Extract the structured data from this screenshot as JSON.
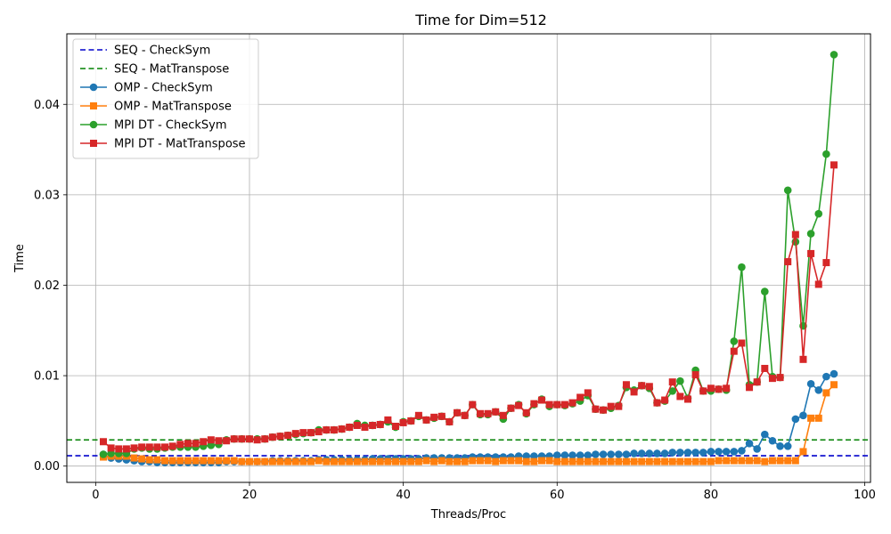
{
  "chart_data": {
    "type": "line",
    "title": "Time for Dim=512",
    "xlabel": "Threads/Proc",
    "ylabel": "Time",
    "xlim": [
      -3.75,
      100.75
    ],
    "ylim": [
      -0.0018,
      0.0478
    ],
    "xticks": [
      0,
      20,
      40,
      60,
      80,
      100
    ],
    "xtick_labels": [
      "0",
      "20",
      "40",
      "60",
      "80",
      "100"
    ],
    "yticks": [
      0,
      0.01,
      0.02,
      0.03,
      0.04
    ],
    "ytick_labels": [
      "0.00",
      "0.01",
      "0.02",
      "0.03",
      "0.04"
    ],
    "grid": true,
    "legend_position": "top-left",
    "reference_lines": [
      {
        "name": "SEQ - CheckSym",
        "y": 0.00115,
        "color": "#0000cc",
        "dash": "dashed"
      },
      {
        "name": "SEQ - MatTranspose",
        "y": 0.0029,
        "color": "#008000",
        "dash": "dashed"
      }
    ],
    "series": [
      {
        "name": "OMP - CheckSym",
        "color": "#1f77b4",
        "marker": "circle",
        "x": [
          1,
          2,
          3,
          4,
          5,
          6,
          7,
          8,
          9,
          10,
          11,
          12,
          13,
          14,
          15,
          16,
          17,
          18,
          19,
          20,
          21,
          22,
          23,
          24,
          25,
          26,
          27,
          28,
          29,
          30,
          31,
          32,
          33,
          34,
          35,
          36,
          37,
          38,
          39,
          40,
          41,
          42,
          43,
          44,
          45,
          46,
          47,
          48,
          49,
          50,
          51,
          52,
          53,
          54,
          55,
          56,
          57,
          58,
          59,
          60,
          61,
          62,
          63,
          64,
          65,
          66,
          67,
          68,
          69,
          70,
          71,
          72,
          73,
          74,
          75,
          76,
          77,
          78,
          79,
          80,
          81,
          82,
          83,
          84,
          85,
          86,
          87,
          88,
          89,
          90,
          91,
          92,
          93,
          94,
          95,
          96
        ],
        "y": [
          0.0013,
          0.0009,
          0.0008,
          0.0007,
          0.0006,
          0.0005,
          0.0005,
          0.0004,
          0.0004,
          0.0004,
          0.0004,
          0.0004,
          0.0004,
          0.0004,
          0.0004,
          0.0004,
          0.0005,
          0.0005,
          0.0005,
          0.0005,
          0.0005,
          0.0005,
          0.0006,
          0.0006,
          0.0006,
          0.0006,
          0.0006,
          0.0006,
          0.0007,
          0.0007,
          0.0007,
          0.0007,
          0.0007,
          0.0007,
          0.0007,
          0.0008,
          0.0008,
          0.0008,
          0.0008,
          0.0008,
          0.0008,
          0.0008,
          0.0009,
          0.0009,
          0.0009,
          0.0009,
          0.0009,
          0.0009,
          0.001,
          0.001,
          0.001,
          0.001,
          0.001,
          0.001,
          0.0011,
          0.0011,
          0.0011,
          0.0011,
          0.0011,
          0.0012,
          0.0012,
          0.0012,
          0.0012,
          0.0012,
          0.0013,
          0.0013,
          0.0013,
          0.0013,
          0.0013,
          0.0014,
          0.0014,
          0.0014,
          0.0014,
          0.0014,
          0.0015,
          0.0015,
          0.0015,
          0.0015,
          0.0015,
          0.0016,
          0.0016,
          0.0016,
          0.0016,
          0.0017,
          0.0025,
          0.0019,
          0.0035,
          0.0028,
          0.0022,
          0.0022,
          0.0052,
          0.0056,
          0.0091,
          0.0084,
          0.0099,
          0.0102
        ]
      },
      {
        "name": "OMP - MatTranspose",
        "color": "#ff7f0e",
        "marker": "square",
        "x": [
          1,
          2,
          3,
          4,
          5,
          6,
          7,
          8,
          9,
          10,
          11,
          12,
          13,
          14,
          15,
          16,
          17,
          18,
          19,
          20,
          21,
          22,
          23,
          24,
          25,
          26,
          27,
          28,
          29,
          30,
          31,
          32,
          33,
          34,
          35,
          36,
          37,
          38,
          39,
          40,
          41,
          42,
          43,
          44,
          45,
          46,
          47,
          48,
          49,
          50,
          51,
          52,
          53,
          54,
          55,
          56,
          57,
          58,
          59,
          60,
          61,
          62,
          63,
          64,
          65,
          66,
          67,
          68,
          69,
          70,
          71,
          72,
          73,
          74,
          75,
          76,
          77,
          78,
          79,
          80,
          81,
          82,
          83,
          84,
          85,
          86,
          87,
          88,
          89,
          90,
          91,
          92,
          93,
          94,
          95,
          96
        ],
        "y": [
          0.001,
          0.0011,
          0.0011,
          0.0011,
          0.0009,
          0.0008,
          0.0007,
          0.0007,
          0.0006,
          0.0006,
          0.0006,
          0.0006,
          0.0006,
          0.0006,
          0.0006,
          0.0006,
          0.0006,
          0.0006,
          0.0005,
          0.0005,
          0.0005,
          0.0005,
          0.0005,
          0.0005,
          0.0005,
          0.0005,
          0.0005,
          0.0005,
          0.0006,
          0.0005,
          0.0005,
          0.0005,
          0.0005,
          0.0005,
          0.0005,
          0.0005,
          0.0005,
          0.0005,
          0.0005,
          0.0005,
          0.0005,
          0.0005,
          0.0006,
          0.0005,
          0.0006,
          0.0005,
          0.0005,
          0.0005,
          0.0006,
          0.0006,
          0.0006,
          0.0005,
          0.0006,
          0.0006,
          0.0006,
          0.0005,
          0.0005,
          0.0006,
          0.0006,
          0.0005,
          0.0005,
          0.0005,
          0.0005,
          0.0005,
          0.0005,
          0.0005,
          0.0005,
          0.0005,
          0.0005,
          0.0005,
          0.0005,
          0.0005,
          0.0005,
          0.0005,
          0.0005,
          0.0005,
          0.0005,
          0.0005,
          0.0005,
          0.0005,
          0.0006,
          0.0006,
          0.0006,
          0.0006,
          0.0006,
          0.0006,
          0.0005,
          0.0006,
          0.0006,
          0.0006,
          0.0006,
          0.0016,
          0.0053,
          0.0053,
          0.0081,
          0.009
        ]
      },
      {
        "name": "MPI DT - CheckSym",
        "color": "#2ca02c",
        "marker": "circle",
        "x": [
          1,
          2,
          3,
          4,
          5,
          6,
          7,
          8,
          9,
          10,
          11,
          12,
          13,
          14,
          15,
          16,
          17,
          18,
          19,
          20,
          21,
          22,
          23,
          24,
          25,
          26,
          27,
          28,
          29,
          30,
          31,
          32,
          33,
          34,
          35,
          36,
          37,
          38,
          39,
          40,
          41,
          42,
          43,
          44,
          45,
          46,
          47,
          48,
          49,
          50,
          51,
          52,
          53,
          54,
          55,
          56,
          57,
          58,
          59,
          60,
          61,
          62,
          63,
          64,
          65,
          66,
          67,
          68,
          69,
          70,
          71,
          72,
          73,
          74,
          75,
          76,
          77,
          78,
          79,
          80,
          81,
          82,
          83,
          84,
          85,
          86,
          87,
          88,
          89,
          90,
          91,
          92,
          93,
          94,
          95,
          96
        ],
        "y": [
          0.0013,
          0.0014,
          0.0014,
          0.0014,
          0.0019,
          0.002,
          0.0019,
          0.0019,
          0.002,
          0.0021,
          0.0021,
          0.0021,
          0.0021,
          0.0022,
          0.0023,
          0.0024,
          0.0029,
          0.003,
          0.003,
          0.003,
          0.003,
          0.003,
          0.0032,
          0.0033,
          0.0034,
          0.0035,
          0.0036,
          0.0037,
          0.004,
          0.004,
          0.004,
          0.0041,
          0.0043,
          0.0047,
          0.0045,
          0.0045,
          0.0046,
          0.0049,
          0.0043,
          0.0049,
          0.005,
          0.0055,
          0.0051,
          0.0053,
          0.0055,
          0.0049,
          0.0059,
          0.0056,
          0.0068,
          0.0057,
          0.0057,
          0.006,
          0.0052,
          0.0064,
          0.0068,
          0.0058,
          0.0068,
          0.0074,
          0.0066,
          0.0068,
          0.0067,
          0.0069,
          0.0072,
          0.0078,
          0.0063,
          0.0062,
          0.0064,
          0.0067,
          0.0087,
          0.0084,
          0.0089,
          0.0086,
          0.007,
          0.0072,
          0.0083,
          0.0094,
          0.0075,
          0.0106,
          0.0083,
          0.0083,
          0.0085,
          0.0084,
          0.0138,
          0.022,
          0.009,
          0.0093,
          0.0193,
          0.0099,
          0.0098,
          0.0305,
          0.0248,
          0.0155,
          0.0257,
          0.0279,
          0.0345,
          0.0455
        ]
      },
      {
        "name": "MPI DT - MatTranspose",
        "color": "#d62728",
        "marker": "square",
        "x": [
          1,
          2,
          3,
          4,
          5,
          6,
          7,
          8,
          9,
          10,
          11,
          12,
          13,
          14,
          15,
          16,
          17,
          18,
          19,
          20,
          21,
          22,
          23,
          24,
          25,
          26,
          27,
          28,
          29,
          30,
          31,
          32,
          33,
          34,
          35,
          36,
          37,
          38,
          39,
          40,
          41,
          42,
          43,
          44,
          45,
          46,
          47,
          48,
          49,
          50,
          51,
          52,
          53,
          54,
          55,
          56,
          57,
          58,
          59,
          60,
          61,
          62,
          63,
          64,
          65,
          66,
          67,
          68,
          69,
          70,
          71,
          72,
          73,
          74,
          75,
          76,
          77,
          78,
          79,
          80,
          81,
          82,
          83,
          84,
          85,
          86,
          87,
          88,
          89,
          90,
          91,
          92,
          93,
          94,
          95,
          96
        ],
        "y": [
          0.0027,
          0.002,
          0.0019,
          0.0019,
          0.002,
          0.0021,
          0.0021,
          0.0021,
          0.0021,
          0.0022,
          0.0024,
          0.0025,
          0.0025,
          0.0027,
          0.0029,
          0.0028,
          0.0028,
          0.003,
          0.003,
          0.003,
          0.0029,
          0.003,
          0.0032,
          0.0033,
          0.0034,
          0.0036,
          0.0037,
          0.0037,
          0.0038,
          0.004,
          0.004,
          0.0041,
          0.0043,
          0.0045,
          0.0043,
          0.0045,
          0.0046,
          0.0051,
          0.0044,
          0.0048,
          0.005,
          0.0056,
          0.0051,
          0.0054,
          0.0055,
          0.0049,
          0.0059,
          0.0056,
          0.0068,
          0.0058,
          0.0058,
          0.006,
          0.0056,
          0.0064,
          0.0067,
          0.0059,
          0.0069,
          0.0073,
          0.0068,
          0.0068,
          0.0068,
          0.007,
          0.0076,
          0.0081,
          0.0063,
          0.0062,
          0.0066,
          0.0066,
          0.009,
          0.0082,
          0.0089,
          0.0088,
          0.007,
          0.0073,
          0.0093,
          0.0077,
          0.0074,
          0.0101,
          0.0083,
          0.0086,
          0.0085,
          0.0086,
          0.0127,
          0.0136,
          0.0087,
          0.0093,
          0.0108,
          0.0097,
          0.0098,
          0.0226,
          0.0256,
          0.0118,
          0.0235,
          0.0201,
          0.0225,
          0.0333
        ]
      }
    ]
  }
}
